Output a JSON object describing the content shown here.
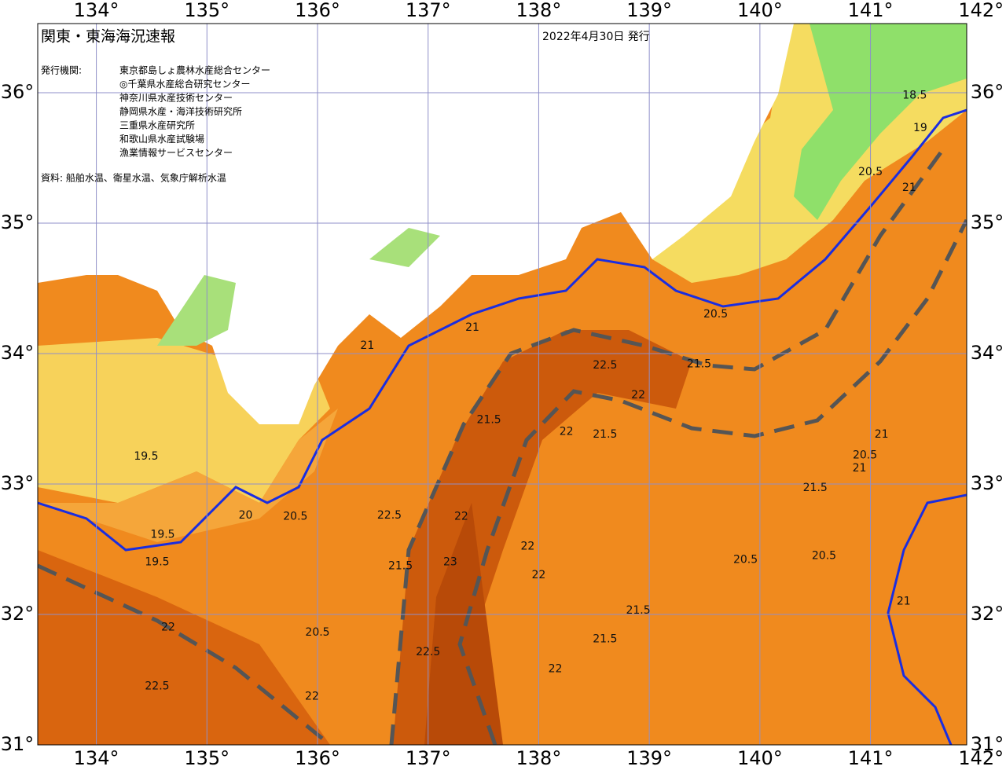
{
  "header": {
    "title": "関東・東海海況速報",
    "date": "2022年4月30日 発行"
  },
  "info": {
    "label": "発行機関:",
    "organizations": [
      "東京都島しょ農林水産総合センター",
      "◎千葉県水産総合研究センター",
      "神奈川県水産技術センター",
      "静岡県水産・海洋技術研究所",
      "三重県水産研究所",
      "和歌山県水産試験場",
      "漁業情報サービスセンター"
    ],
    "source": "資料: 船舶水温、衛星水温、気象庁解析水温"
  },
  "axes": {
    "lon_ticks": [
      {
        "value": 134,
        "label": "134°"
      },
      {
        "value": 135,
        "label": "135°"
      },
      {
        "value": 136,
        "label": "136°"
      },
      {
        "value": 137,
        "label": "137°"
      },
      {
        "value": 138,
        "label": "138°"
      },
      {
        "value": 139,
        "label": "139°"
      },
      {
        "value": 140,
        "label": "140°"
      },
      {
        "value": 141,
        "label": "141°"
      },
      {
        "value": 142,
        "label": "142°"
      }
    ],
    "lat_ticks": [
      {
        "value": 36,
        "label": "36°"
      },
      {
        "value": 35,
        "label": "35°"
      },
      {
        "value": 34,
        "label": "34°"
      },
      {
        "value": 33,
        "label": "33°"
      },
      {
        "value": 32,
        "label": "32°"
      },
      {
        "value": 31,
        "label": "31°"
      }
    ],
    "lon_range": [
      133.47,
      141.87
    ],
    "lat_range": [
      31.0,
      36.53
    ]
  },
  "contour_labels": [
    {
      "value": 18.5,
      "lon": 141.4,
      "lat": 35.98
    },
    {
      "value": 19,
      "lon": 141.45,
      "lat": 35.73
    },
    {
      "value": 19.5,
      "lon": 134.45,
      "lat": 33.21
    },
    {
      "value": 19.5,
      "lon": 134.6,
      "lat": 32.61
    },
    {
      "value": 19.5,
      "lon": 134.55,
      "lat": 32.4
    },
    {
      "value": 20,
      "lon": 135.35,
      "lat": 32.76
    },
    {
      "value": 20.5,
      "lon": 135.8,
      "lat": 32.75
    },
    {
      "value": 21,
      "lon": 136.45,
      "lat": 34.06
    },
    {
      "value": 21,
      "lon": 137.4,
      "lat": 34.2
    },
    {
      "value": 21.5,
      "lon": 137.55,
      "lat": 33.49
    },
    {
      "value": 22.5,
      "lon": 138.6,
      "lat": 33.91
    },
    {
      "value": 22,
      "lon": 138.9,
      "lat": 33.68
    },
    {
      "value": 21.5,
      "lon": 138.6,
      "lat": 33.38
    },
    {
      "value": 22,
      "lon": 138.25,
      "lat": 33.4
    },
    {
      "value": 22,
      "lon": 137.3,
      "lat": 32.75
    },
    {
      "value": 22.5,
      "lon": 136.65,
      "lat": 32.76
    },
    {
      "value": 23,
      "lon": 137.2,
      "lat": 32.4
    },
    {
      "value": 22,
      "lon": 137.9,
      "lat": 32.52
    },
    {
      "value": 21.5,
      "lon": 136.75,
      "lat": 32.37
    },
    {
      "value": 22,
      "lon": 138.0,
      "lat": 32.3
    },
    {
      "value": 22.5,
      "lon": 137.0,
      "lat": 31.71
    },
    {
      "value": 22,
      "lon": 138.15,
      "lat": 31.58
    },
    {
      "value": 21.5,
      "lon": 138.9,
      "lat": 32.03
    },
    {
      "value": 21.5,
      "lon": 138.6,
      "lat": 31.81
    },
    {
      "value": 20.5,
      "lon": 139.87,
      "lat": 32.42
    },
    {
      "value": 20.5,
      "lon": 140.58,
      "lat": 32.45
    },
    {
      "value": 21,
      "lon": 140.9,
      "lat": 33.12
    },
    {
      "value": 20.5,
      "lon": 140.95,
      "lat": 33.22
    },
    {
      "value": 21.5,
      "lon": 140.5,
      "lat": 32.97
    },
    {
      "value": 20.5,
      "lon": 139.6,
      "lat": 34.3
    },
    {
      "value": 21.5,
      "lon": 139.45,
      "lat": 33.92
    },
    {
      "value": 21,
      "lon": 141.1,
      "lat": 33.38
    },
    {
      "value": 20.5,
      "lon": 141.0,
      "lat": 35.39
    },
    {
      "value": 21,
      "lon": 141.35,
      "lat": 35.27
    },
    {
      "value": 22,
      "lon": 134.65,
      "lat": 31.9
    },
    {
      "value": 22.5,
      "lon": 134.55,
      "lat": 31.45
    },
    {
      "value": 22,
      "lon": 135.95,
      "lat": 31.37
    },
    {
      "value": 20.5,
      "lon": 136.0,
      "lat": 31.86
    },
    {
      "value": 21,
      "lon": 141.3,
      "lat": 32.1
    }
  ]
}
